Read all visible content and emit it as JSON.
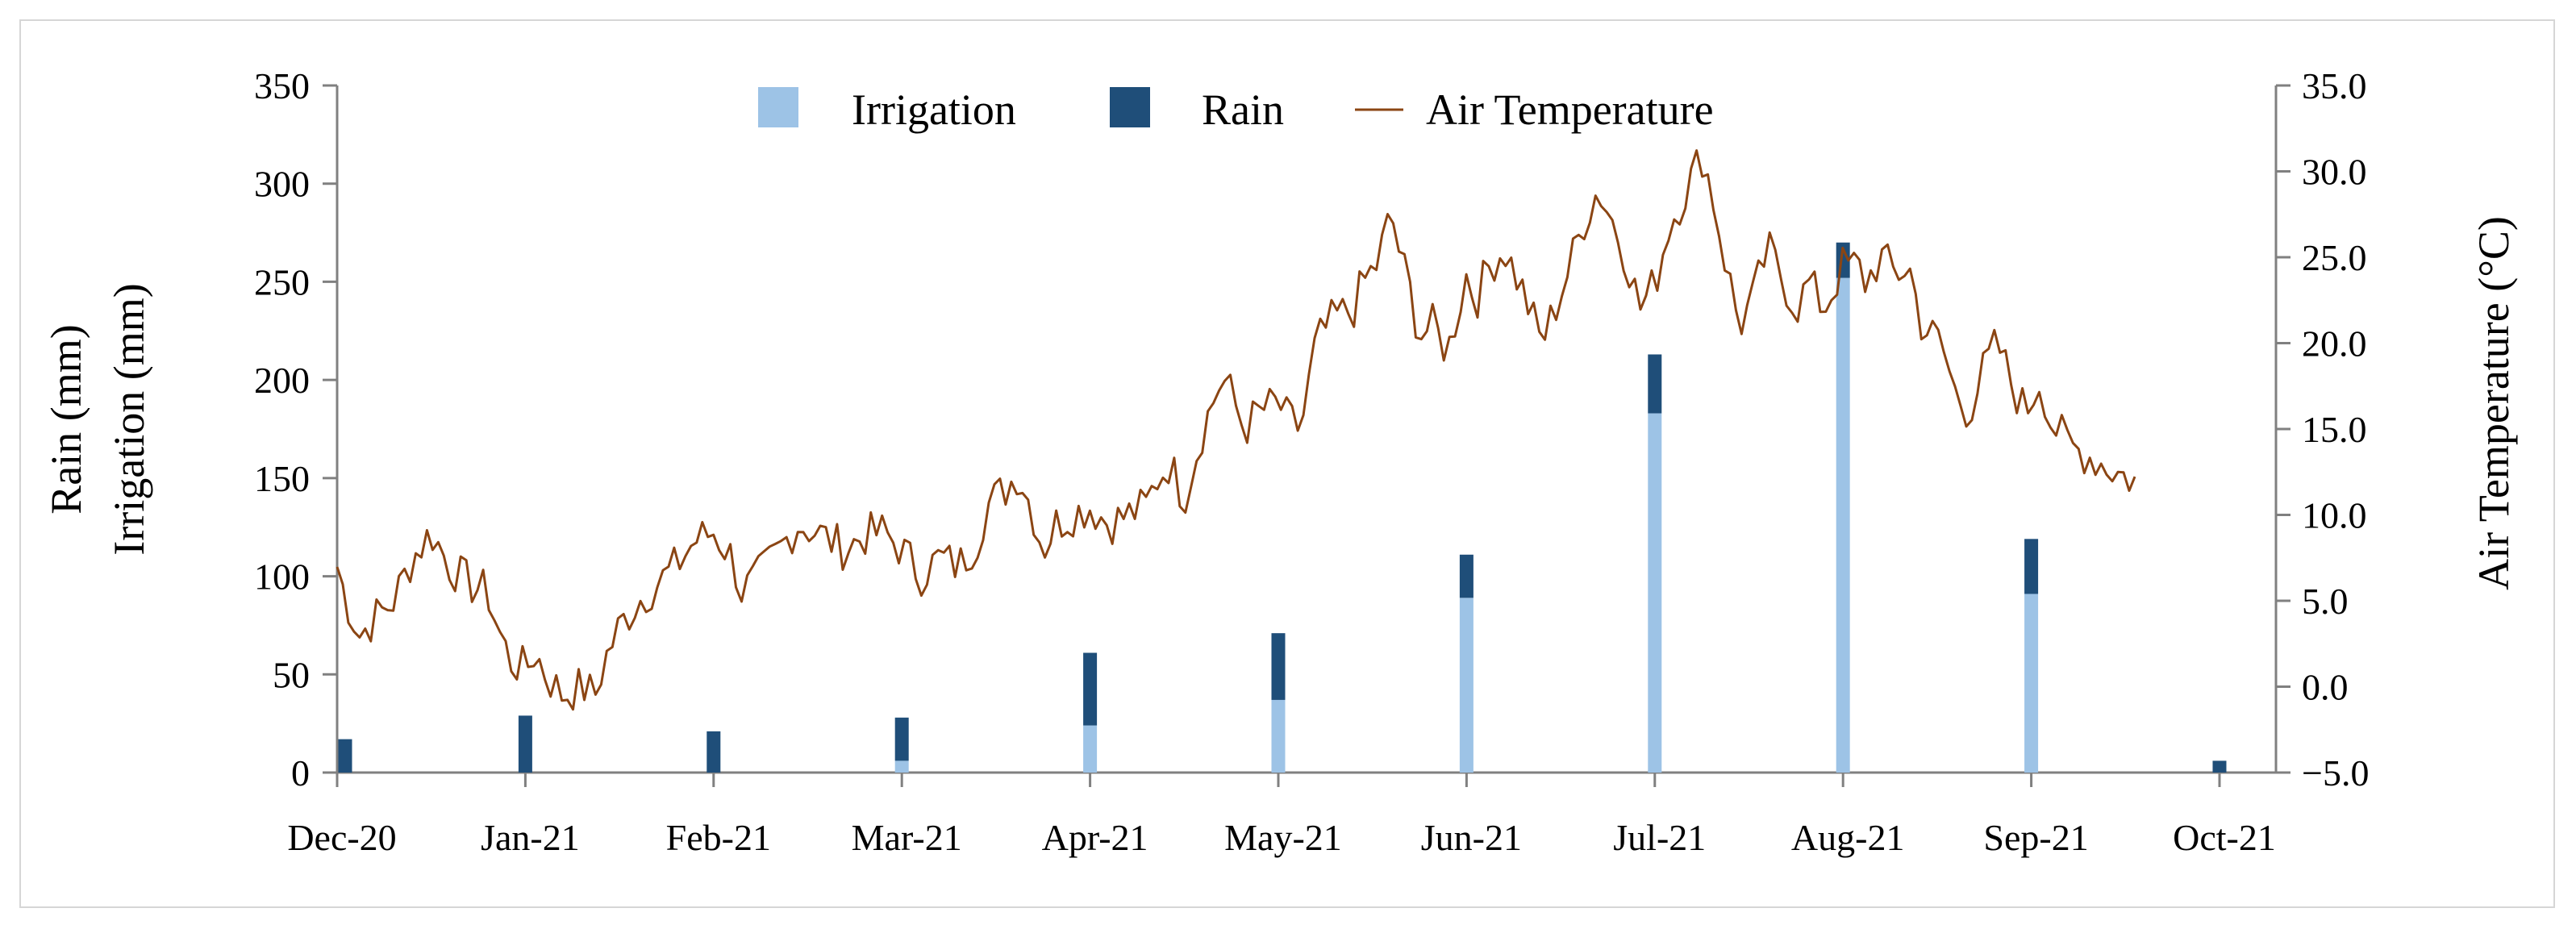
{
  "chart_data": {
    "type": "bar+line",
    "title": "",
    "x_tick_labels": [
      "Dec-20",
      "Jan-21",
      "Feb-21",
      "Mar-21",
      "Apr-21",
      "May-21",
      "Jun-21",
      "Jul-21",
      "Aug-21",
      "Sep-21",
      "Oct-21"
    ],
    "ylabel_left": [
      "Rain (mm)",
      "Irrigation (mm)"
    ],
    "ylabel_right": "Air Temperature (°C)",
    "ylim_left": [
      0,
      350
    ],
    "yticks_left": [
      "0",
      "50",
      "100",
      "150",
      "200",
      "250",
      "300",
      "350"
    ],
    "ylim_right": [
      -5,
      35
    ],
    "yticks_right": [
      "−5.0",
      "0.0",
      "5.0",
      "10.0",
      "15.0",
      "20.0",
      "25.0",
      "30.0",
      "35.0"
    ],
    "legend": {
      "position": "top-center",
      "items": [
        {
          "label": "Irrigation",
          "color": "#9dc3e6",
          "kind": "bar"
        },
        {
          "label": "Rain",
          "color": "#1f4e79",
          "kind": "bar"
        },
        {
          "label": "Air Temperature",
          "color": "#8b4513",
          "kind": "line"
        }
      ]
    },
    "bars": {
      "stacked": true,
      "categories": [
        "Dec-20",
        "Jan-21",
        "Feb-21",
        "Mar-21",
        "Apr-21",
        "May-21",
        "Jun-21",
        "Jul-21",
        "Aug-21",
        "Sep-21",
        "Oct-21"
      ],
      "series": [
        {
          "name": "Irrigation",
          "color": "#9dc3e6",
          "values": [
            0,
            0,
            0,
            6,
            24,
            37,
            89,
            183,
            252,
            91,
            0
          ]
        },
        {
          "name": "Rain",
          "color": "#1f4e79",
          "values": [
            17,
            29,
            21,
            22,
            37,
            34,
            22,
            30,
            18,
            28,
            6
          ]
        }
      ]
    },
    "temperature": {
      "name": "Air Temperature",
      "color": "#8b4513",
      "x_start": "Dec-20",
      "x_end": "Oct-21",
      "anchors": [
        [
          0.0,
          7.0
        ],
        [
          0.05,
          5.0
        ],
        [
          0.12,
          3.0
        ],
        [
          0.2,
          4.0
        ],
        [
          0.3,
          5.0
        ],
        [
          0.4,
          7.5
        ],
        [
          0.5,
          9.0
        ],
        [
          0.6,
          7.0
        ],
        [
          0.7,
          6.0
        ],
        [
          0.8,
          5.5
        ],
        [
          0.85,
          3.5
        ],
        [
          0.92,
          1.5
        ],
        [
          1.0,
          1.0
        ],
        [
          1.05,
          2.0
        ],
        [
          1.12,
          0.5
        ],
        [
          1.2,
          -0.5
        ],
        [
          1.3,
          0.0
        ],
        [
          1.37,
          -0.5
        ],
        [
          1.42,
          1.5
        ],
        [
          1.5,
          3.5
        ],
        [
          1.6,
          5.0
        ],
        [
          1.7,
          6.0
        ],
        [
          1.8,
          7.0
        ],
        [
          1.9,
          8.5
        ],
        [
          2.0,
          9.0
        ],
        [
          2.1,
          7.5
        ],
        [
          2.15,
          5.5
        ],
        [
          2.25,
          6.5
        ],
        [
          2.35,
          8.0
        ],
        [
          2.45,
          9.5
        ],
        [
          2.55,
          9.0
        ],
        [
          2.62,
          8.5
        ],
        [
          2.7,
          8.0
        ],
        [
          2.8,
          8.8
        ],
        [
          2.9,
          9.0
        ],
        [
          3.0,
          8.0
        ],
        [
          3.1,
          6.5
        ],
        [
          3.2,
          7.5
        ],
        [
          3.3,
          7.0
        ],
        [
          3.4,
          8.5
        ],
        [
          3.45,
          10.5
        ],
        [
          3.55,
          11.5
        ],
        [
          3.62,
          12.5
        ],
        [
          3.7,
          10.0
        ],
        [
          3.75,
          8.0
        ],
        [
          3.82,
          9.5
        ],
        [
          3.9,
          10.0
        ],
        [
          4.0,
          10.5
        ],
        [
          4.1,
          9.5
        ],
        [
          4.2,
          10.0
        ],
        [
          4.3,
          10.5
        ],
        [
          4.35,
          12.0
        ],
        [
          4.42,
          13.0
        ],
        [
          4.5,
          11.0
        ],
        [
          4.6,
          15.0
        ],
        [
          4.7,
          18.0
        ],
        [
          4.75,
          17.0
        ],
        [
          4.82,
          15.0
        ],
        [
          4.9,
          16.0
        ],
        [
          5.0,
          16.5
        ],
        [
          5.05,
          15.5
        ],
        [
          5.12,
          15.0
        ],
        [
          5.2,
          20.0
        ],
        [
          5.3,
          21.5
        ],
        [
          5.4,
          22.0
        ],
        [
          5.45,
          23.5
        ],
        [
          5.52,
          24.5
        ],
        [
          5.6,
          27.5
        ],
        [
          5.65,
          25.0
        ],
        [
          5.7,
          23.0
        ],
        [
          5.75,
          20.5
        ],
        [
          5.82,
          21.0
        ],
        [
          5.9,
          19.5
        ],
        [
          6.0,
          24.0
        ],
        [
          6.05,
          22.5
        ],
        [
          6.12,
          24.5
        ],
        [
          6.2,
          25.5
        ],
        [
          6.3,
          23.0
        ],
        [
          6.4,
          20.0
        ],
        [
          6.47,
          22.0
        ],
        [
          6.55,
          24.5
        ],
        [
          6.62,
          27.0
        ],
        [
          6.7,
          29.0
        ],
        [
          6.78,
          27.0
        ],
        [
          6.85,
          25.0
        ],
        [
          6.92,
          22.0
        ],
        [
          7.0,
          23.5
        ],
        [
          7.08,
          27.0
        ],
        [
          7.15,
          28.5
        ],
        [
          7.25,
          31.0
        ],
        [
          7.3,
          29.0
        ],
        [
          7.37,
          25.0
        ],
        [
          7.45,
          21.0
        ],
        [
          7.52,
          22.5
        ],
        [
          7.6,
          25.5
        ],
        [
          7.67,
          24.0
        ],
        [
          7.75,
          22.0
        ],
        [
          7.82,
          23.5
        ],
        [
          7.9,
          22.0
        ],
        [
          8.0,
          24.5
        ],
        [
          8.08,
          24.5
        ],
        [
          8.12,
          23.5
        ],
        [
          8.2,
          25.0
        ],
        [
          8.28,
          24.0
        ],
        [
          8.35,
          24.5
        ],
        [
          8.42,
          21.0
        ],
        [
          8.52,
          20.0
        ],
        [
          8.6,
          17.0
        ],
        [
          8.67,
          16.0
        ],
        [
          8.75,
          18.5
        ],
        [
          8.82,
          20.0
        ],
        [
          8.9,
          17.5
        ],
        [
          8.97,
          16.0
        ],
        [
          9.05,
          18.0
        ],
        [
          9.1,
          15.5
        ],
        [
          9.2,
          14.0
        ],
        [
          9.3,
          13.5
        ],
        [
          9.45,
          12.5
        ],
        [
          9.55,
          12.0
        ]
      ]
    }
  }
}
